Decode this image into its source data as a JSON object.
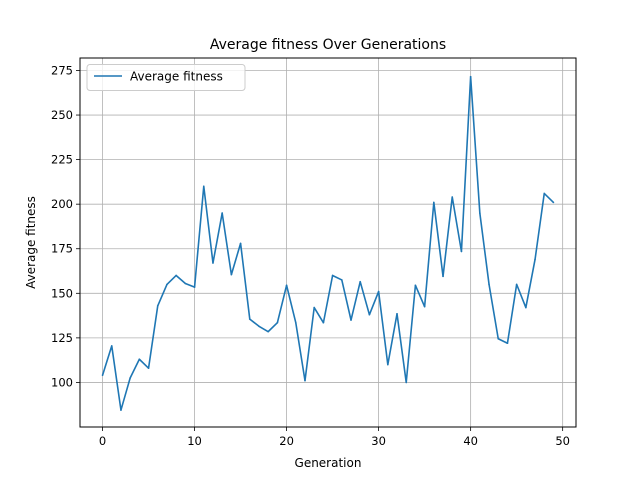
{
  "chart_data": {
    "type": "line",
    "title": "Average fitness Over Generations",
    "xlabel": "Generation",
    "ylabel": "Average fitness",
    "xlim": [
      -2.45,
      51.45
    ],
    "ylim": [
      75.0,
      282.0
    ],
    "xticks": [
      0,
      10,
      20,
      30,
      40,
      50
    ],
    "yticks": [
      100,
      125,
      150,
      175,
      200,
      225,
      250,
      275
    ],
    "grid": true,
    "legend_position": "top-left",
    "colors": {
      "line": "#1f77b4",
      "grid": "#b0b0b0"
    },
    "series": [
      {
        "name": "Average fitness",
        "x": [
          0,
          1,
          2,
          3,
          4,
          5,
          6,
          7,
          8,
          9,
          10,
          11,
          12,
          13,
          14,
          15,
          16,
          17,
          18,
          19,
          20,
          21,
          22,
          23,
          24,
          25,
          26,
          27,
          28,
          29,
          30,
          31,
          32,
          33,
          34,
          35,
          36,
          37,
          38,
          39,
          40,
          41,
          42,
          43,
          44,
          45,
          46,
          47,
          48,
          49
        ],
        "y": [
          104,
          120.5,
          84.5,
          102.5,
          113,
          108,
          143,
          155,
          160,
          155.5,
          153.5,
          210,
          167,
          195,
          160.5,
          178,
          135.5,
          131.5,
          128.5,
          133.5,
          154.5,
          133.5,
          101,
          142,
          133.5,
          160,
          157.5,
          135,
          156.5,
          138,
          151,
          110,
          138.5,
          100,
          154.5,
          142.5,
          201,
          159.5,
          204,
          173.5,
          271.5,
          195,
          155,
          124.5,
          122,
          155,
          142,
          169,
          206,
          201
        ]
      }
    ]
  }
}
